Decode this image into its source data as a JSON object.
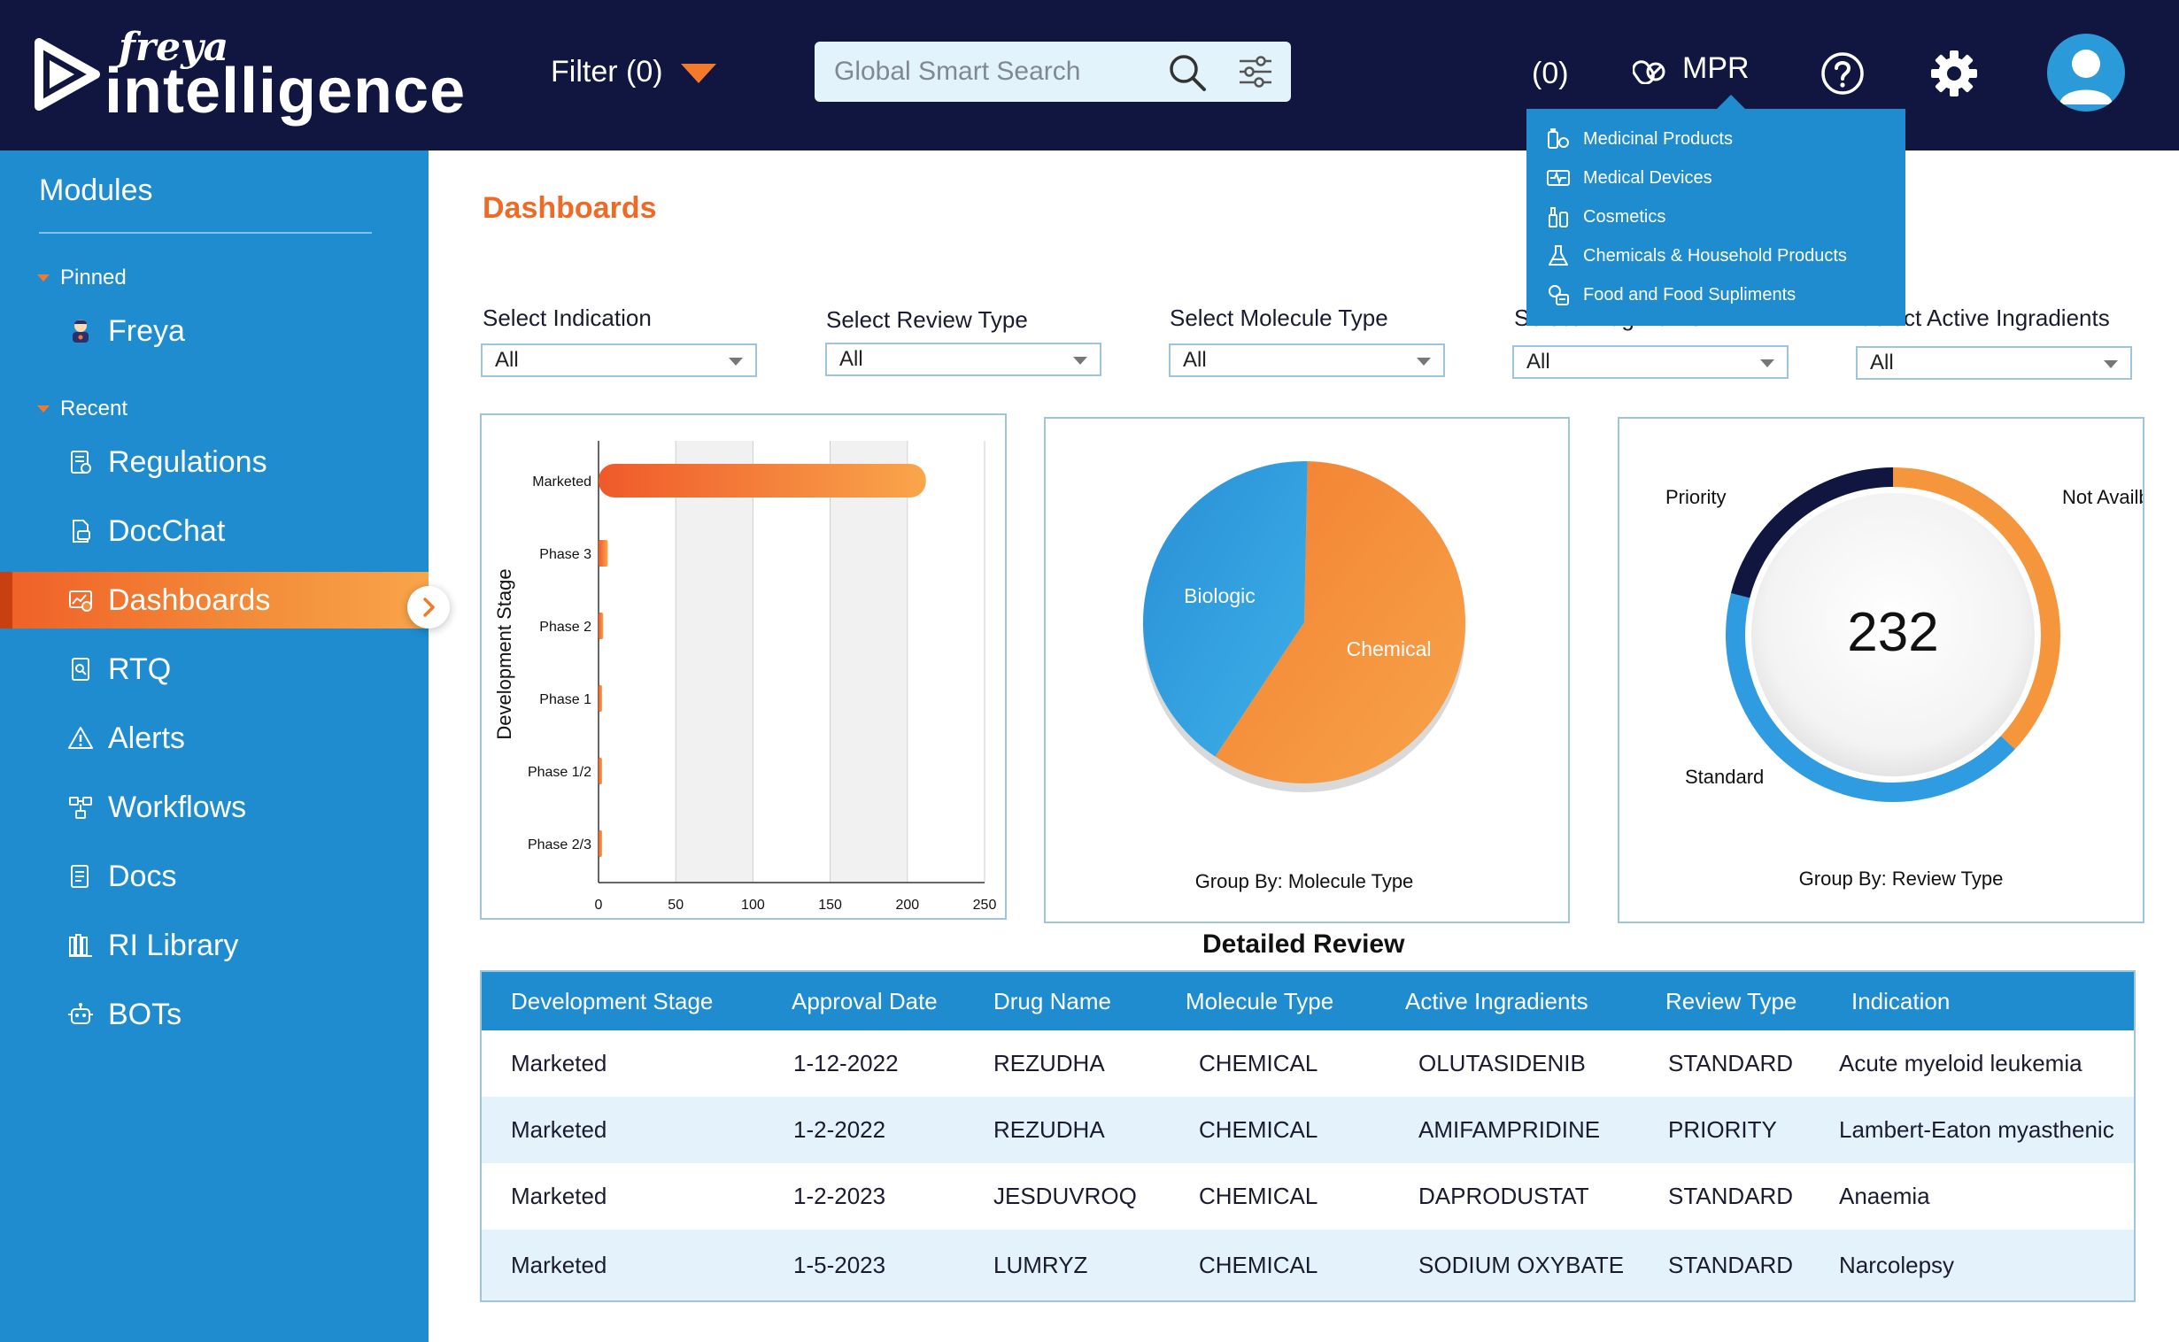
{
  "header": {
    "logo_top": "freya",
    "logo_main": "intelligence",
    "filter_label": "Filter (0)",
    "search_placeholder": "Global Smart Search",
    "count": "(0)",
    "mpr_label": "MPR"
  },
  "mpr_menu": [
    {
      "label": "Medicinal Products",
      "icon": "medicinal-icon"
    },
    {
      "label": "Medical Devices",
      "icon": "device-icon"
    },
    {
      "label": "Cosmetics",
      "icon": "cosmetics-icon"
    },
    {
      "label": "Chemicals & Household Products",
      "icon": "flask-icon"
    },
    {
      "label": "Food and Food Supliments",
      "icon": "food-icon"
    }
  ],
  "sidebar": {
    "title": "Modules",
    "pinned_label": "Pinned",
    "recent_label": "Recent",
    "pinned_items": [
      {
        "label": "Freya"
      }
    ],
    "items": [
      {
        "label": "Regulations"
      },
      {
        "label": "DocChat"
      },
      {
        "label": "Dashboards"
      },
      {
        "label": "RTQ"
      },
      {
        "label": "Alerts"
      },
      {
        "label": "Workflows"
      },
      {
        "label": "Docs"
      },
      {
        "label": "RI Library"
      },
      {
        "label": "BOTs"
      }
    ]
  },
  "main": {
    "title": "Dashboards",
    "filters": [
      {
        "label": "Select Indication",
        "value": "All"
      },
      {
        "label": "Select Review Type",
        "value": "All"
      },
      {
        "label": "Select  Molecule Type",
        "value": "All"
      },
      {
        "label": "Select  Drug Name",
        "value": "All"
      },
      {
        "label": "Select  Active Ingradients",
        "value": "All"
      }
    ]
  },
  "charts": {
    "bar": {
      "type": "bar",
      "orientation": "horizontal",
      "ylabel": "Development Stage",
      "categories": [
        "Marketed",
        "Phase 3",
        "Phase 2",
        "Phase 1",
        "Phase 1/2",
        "Phase 2/3"
      ],
      "values": [
        212,
        6,
        3,
        2,
        2,
        1
      ],
      "xlim": [
        0,
        250
      ],
      "xticks": [
        "0",
        "50",
        "100",
        "150",
        "200",
        "250"
      ]
    },
    "pie": {
      "type": "pie",
      "footer": "Group By: Molecule Type",
      "labels": [
        "Biologic",
        "Chemical"
      ],
      "values": [
        41,
        59
      ],
      "colors": [
        "#2f9be0",
        "#f37f32"
      ]
    },
    "donut": {
      "type": "donut",
      "center_value": "232",
      "footer": "Group By: Review Type",
      "labels": [
        "Not Availble",
        "Standard",
        "Priority"
      ],
      "values": [
        37,
        42,
        21
      ],
      "colors": [
        "#f5953c",
        "#2f9be0",
        "#10163f"
      ]
    }
  },
  "table": {
    "title": "Detailed Review",
    "columns": [
      "Development Stage",
      "Approval Date",
      "Drug Name",
      "Molecule Type",
      "Active Ingradients",
      "Review Type",
      "Indication"
    ],
    "rows": [
      [
        "Marketed",
        "1-12-2022",
        "REZUDHA",
        "CHEMICAL",
        "OLUTASIDENIB",
        "STANDARD",
        "Acute myeloid  leukemia"
      ],
      [
        "Marketed",
        "1-2-2022",
        "REZUDHA",
        "CHEMICAL",
        "AMIFAMPRIDINE",
        "PRIORITY",
        "Lambert-Eaton myasthenic"
      ],
      [
        "Marketed",
        "1-2-2023",
        "JESDUVROQ",
        "CHEMICAL",
        "DAPRODUSTAT",
        "STANDARD",
        "Anaemia"
      ],
      [
        "Marketed",
        "1-5-2023",
        "LUMRYZ",
        "CHEMICAL",
        "SODIUM OXYBATE",
        "STANDARD",
        "Narcolepsy"
      ]
    ]
  }
}
